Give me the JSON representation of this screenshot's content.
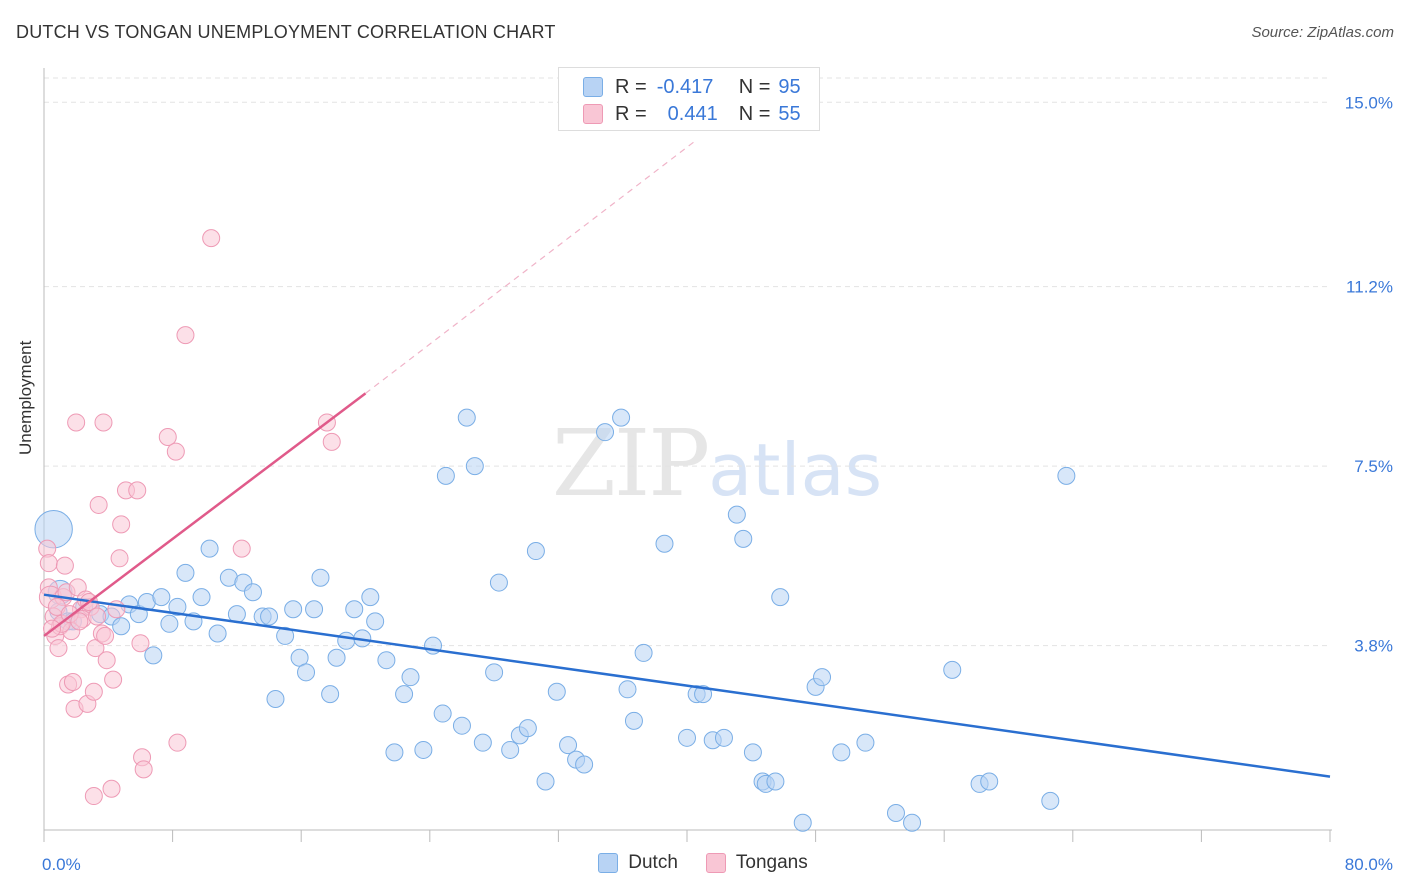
{
  "title": "DUTCH VS TONGAN UNEMPLOYMENT CORRELATION CHART",
  "source": "Source: ZipAtlas.com",
  "watermark": {
    "zip": "ZIP",
    "atlas": "atlas"
  },
  "colors": {
    "dutch_fill": "#b8d3f4",
    "dutch_stroke": "#7aaee6",
    "dutch_line": "#2a6fd0",
    "tongan_fill": "#f9c6d5",
    "tongan_stroke": "#ee9ab5",
    "tongan_line": "#e05a8a",
    "value_text": "#3a78d8",
    "grid": "#e3e3e3"
  },
  "legend": {
    "rows": [
      {
        "r_label": "R =",
        "r_value": "-0.417",
        "n_label": "N =",
        "n_value": "95"
      },
      {
        "r_label": "R =",
        "r_value": "0.441",
        "n_label": "N =",
        "n_value": "55"
      }
    ]
  },
  "bottom_legend": {
    "dutch": "Dutch",
    "tongan": "Tongans"
  },
  "chart_data": {
    "type": "scatter",
    "xlabel": "",
    "ylabel": "Unemployment",
    "xlim": [
      0,
      80
    ],
    "ylim": [
      0,
      15.5
    ],
    "x_tick_labels": [
      {
        "v": 0,
        "label": "0.0%"
      },
      {
        "v": 80,
        "label": "80.0%"
      }
    ],
    "y_tick_labels": [
      {
        "v": 3.8,
        "label": "3.8%"
      },
      {
        "v": 7.5,
        "label": "7.5%"
      },
      {
        "v": 11.2,
        "label": "11.2%"
      },
      {
        "v": 15.0,
        "label": "15.0%"
      }
    ],
    "x_minor_ticks": [
      0,
      8,
      16,
      24,
      32,
      40,
      48,
      56,
      64,
      72,
      80
    ],
    "grid": true,
    "series": [
      {
        "name": "Dutch",
        "trend": {
          "x": [
            0,
            80
          ],
          "y": [
            4.85,
            1.1
          ]
        },
        "points": [
          [
            0.6,
            6.2,
            2.2
          ],
          [
            1.0,
            4.9,
            1.4
          ],
          [
            0.9,
            4.5,
            1.0
          ],
          [
            1.5,
            4.3,
            1.0
          ],
          [
            1.8,
            4.3,
            1.0
          ],
          [
            2.5,
            4.6,
            1.0
          ],
          [
            3.5,
            4.45,
            1.0
          ],
          [
            4.2,
            4.4,
            1.0
          ],
          [
            4.8,
            4.2,
            1.0
          ],
          [
            5.3,
            4.65,
            1.0
          ],
          [
            5.9,
            4.45,
            1.0
          ],
          [
            6.4,
            4.7,
            1.0
          ],
          [
            6.8,
            3.6,
            1.0
          ],
          [
            7.3,
            4.8,
            1.0
          ],
          [
            7.8,
            4.25,
            1.0
          ],
          [
            8.3,
            4.6,
            1.0
          ],
          [
            8.8,
            5.3,
            1.0
          ],
          [
            9.3,
            4.3,
            1.0
          ],
          [
            9.8,
            4.8,
            1.0
          ],
          [
            10.3,
            5.8,
            1.0
          ],
          [
            10.8,
            4.05,
            1.0
          ],
          [
            11.5,
            5.2,
            1.0
          ],
          [
            12.0,
            4.45,
            1.0
          ],
          [
            12.4,
            5.1,
            1.0
          ],
          [
            13.0,
            4.9,
            1.0
          ],
          [
            13.6,
            4.4,
            1.0
          ],
          [
            14.0,
            4.4,
            1.0
          ],
          [
            14.4,
            2.7,
            1.0
          ],
          [
            15.0,
            4.0,
            1.0
          ],
          [
            15.5,
            4.55,
            1.0
          ],
          [
            15.9,
            3.55,
            1.0
          ],
          [
            16.3,
            3.25,
            1.0
          ],
          [
            16.8,
            4.55,
            1.0
          ],
          [
            17.2,
            5.2,
            1.0
          ],
          [
            17.8,
            2.8,
            1.0
          ],
          [
            18.2,
            3.55,
            1.0
          ],
          [
            18.8,
            3.9,
            1.0
          ],
          [
            19.3,
            4.55,
            1.0
          ],
          [
            19.8,
            3.95,
            1.0
          ],
          [
            20.3,
            4.8,
            1.0
          ],
          [
            20.6,
            4.3,
            1.0
          ],
          [
            21.3,
            3.5,
            1.0
          ],
          [
            21.8,
            1.6,
            1.0
          ],
          [
            22.4,
            2.8,
            1.0
          ],
          [
            22.8,
            3.15,
            1.0
          ],
          [
            23.6,
            1.65,
            1.0
          ],
          [
            24.2,
            3.8,
            1.0
          ],
          [
            24.8,
            2.4,
            1.0
          ],
          [
            25.0,
            7.3,
            1.0
          ],
          [
            26.0,
            2.15,
            1.0
          ],
          [
            26.3,
            8.5,
            1.0
          ],
          [
            26.8,
            7.5,
            1.0
          ],
          [
            27.3,
            1.8,
            1.0
          ],
          [
            28.0,
            3.25,
            1.0
          ],
          [
            28.3,
            5.1,
            1.0
          ],
          [
            29.0,
            1.65,
            1.0
          ],
          [
            29.6,
            1.95,
            1.0
          ],
          [
            30.1,
            2.1,
            1.0
          ],
          [
            30.6,
            5.75,
            1.0
          ],
          [
            31.2,
            1.0,
            1.0
          ],
          [
            31.9,
            2.85,
            1.0
          ],
          [
            32.6,
            1.75,
            1.0
          ],
          [
            33.1,
            1.45,
            1.0
          ],
          [
            33.6,
            1.35,
            1.0
          ],
          [
            34.9,
            8.2,
            1.0
          ],
          [
            35.9,
            8.5,
            1.0
          ],
          [
            36.3,
            2.9,
            1.0
          ],
          [
            36.7,
            2.25,
            1.0
          ],
          [
            37.3,
            3.65,
            1.0
          ],
          [
            38.6,
            5.9,
            1.0
          ],
          [
            40.0,
            1.9,
            1.0
          ],
          [
            40.6,
            2.8,
            1.0
          ],
          [
            41.0,
            2.8,
            1.0
          ],
          [
            41.6,
            1.85,
            1.0
          ],
          [
            42.3,
            1.9,
            1.0
          ],
          [
            43.1,
            6.5,
            1.0
          ],
          [
            43.5,
            6.0,
            1.0
          ],
          [
            44.1,
            1.6,
            1.0
          ],
          [
            44.7,
            1.0,
            1.0
          ],
          [
            44.9,
            0.95,
            1.0
          ],
          [
            45.5,
            1.0,
            1.0
          ],
          [
            45.8,
            4.8,
            1.0
          ],
          [
            47.2,
            0.15,
            1.0
          ],
          [
            48.0,
            2.95,
            1.0
          ],
          [
            48.4,
            3.15,
            1.0
          ],
          [
            49.6,
            1.6,
            1.0
          ],
          [
            51.1,
            1.8,
            1.0
          ],
          [
            53.0,
            0.35,
            1.0
          ],
          [
            54.0,
            0.15,
            1.0
          ],
          [
            56.5,
            3.3,
            1.0
          ],
          [
            58.2,
            0.95,
            1.0
          ],
          [
            58.8,
            1.0,
            1.0
          ],
          [
            62.6,
            0.6,
            1.0
          ],
          [
            63.6,
            7.3,
            1.0
          ]
        ]
      },
      {
        "name": "Tongans",
        "trend": {
          "x": [
            0,
            20
          ],
          "y": [
            4.0,
            9.0
          ]
        },
        "trend_ext": {
          "x": [
            20,
            40.5
          ],
          "y": [
            9.0,
            14.2
          ]
        },
        "points": [
          [
            0.2,
            5.8,
            1.0
          ],
          [
            0.3,
            5.5,
            1.0
          ],
          [
            0.3,
            5.0,
            1.0
          ],
          [
            0.4,
            4.8,
            1.3
          ],
          [
            0.6,
            4.4,
            1.0
          ],
          [
            0.7,
            4.0,
            1.0
          ],
          [
            0.9,
            3.75,
            1.0
          ],
          [
            1.0,
            4.2,
            1.0
          ],
          [
            1.2,
            4.8,
            1.0
          ],
          [
            1.3,
            5.45,
            1.0
          ],
          [
            1.4,
            4.9,
            1.0
          ],
          [
            1.5,
            3.0,
            1.0
          ],
          [
            1.7,
            4.1,
            1.0
          ],
          [
            1.8,
            3.05,
            1.0
          ],
          [
            1.9,
            2.5,
            1.0
          ],
          [
            2.0,
            8.4,
            1.0
          ],
          [
            2.1,
            5.0,
            1.0
          ],
          [
            2.3,
            4.55,
            1.0
          ],
          [
            2.6,
            4.75,
            1.0
          ],
          [
            2.7,
            2.6,
            1.0
          ],
          [
            2.9,
            4.6,
            1.0
          ],
          [
            3.1,
            2.85,
            1.0
          ],
          [
            3.2,
            3.75,
            1.0
          ],
          [
            3.4,
            6.7,
            1.0
          ],
          [
            3.6,
            4.05,
            1.0
          ],
          [
            3.7,
            8.4,
            1.0
          ],
          [
            3.8,
            4.0,
            1.0
          ],
          [
            3.9,
            3.5,
            1.0
          ],
          [
            4.2,
            0.85,
            1.0
          ],
          [
            4.3,
            3.1,
            1.0
          ],
          [
            4.5,
            4.55,
            1.0
          ],
          [
            4.7,
            5.6,
            1.0
          ],
          [
            4.8,
            6.3,
            1.0
          ],
          [
            5.1,
            7.0,
            1.0
          ],
          [
            3.1,
            0.7,
            1.0
          ],
          [
            5.8,
            7.0,
            1.0
          ],
          [
            6.0,
            3.85,
            1.0
          ],
          [
            6.1,
            1.5,
            1.0
          ],
          [
            6.2,
            1.25,
            1.0
          ],
          [
            7.7,
            8.1,
            1.0
          ],
          [
            8.2,
            7.8,
            1.0
          ],
          [
            8.3,
            1.8,
            1.0
          ],
          [
            8.8,
            10.2,
            1.0
          ],
          [
            10.4,
            12.2,
            1.0
          ],
          [
            12.3,
            5.8,
            1.0
          ],
          [
            17.6,
            8.4,
            1.0
          ],
          [
            17.9,
            8.0,
            1.0
          ],
          [
            2.4,
            4.35,
            1.0
          ],
          [
            1.1,
            4.25,
            1.0
          ],
          [
            2.8,
            4.7,
            1.0
          ],
          [
            0.8,
            4.6,
            1.0
          ],
          [
            1.6,
            4.45,
            1.0
          ],
          [
            3.3,
            4.4,
            1.0
          ],
          [
            0.5,
            4.15,
            1.0
          ],
          [
            2.2,
            4.3,
            1.0
          ]
        ]
      }
    ]
  }
}
